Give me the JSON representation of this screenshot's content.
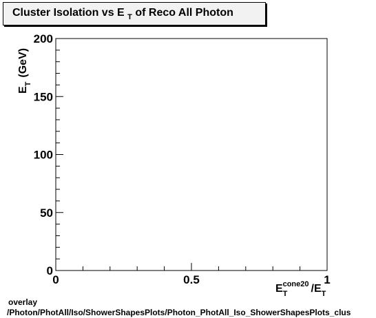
{
  "title": {
    "prefix": "Cluster Isolation vs E",
    "sub": "T",
    "suffix": "of Reco All Photon"
  },
  "chart_data": {
    "type": "scatter",
    "title": "Cluster Isolation vs E_T of Reco All Photon",
    "xlabel": "E_T^cone20/E_T",
    "ylabel": "E_T (GeV)",
    "xlim": [
      0,
      1
    ],
    "ylim": [
      0,
      200
    ],
    "x_tick_labels": [
      "0",
      "0.5",
      "1"
    ],
    "y_tick_labels": [
      "0",
      "50",
      "100",
      "150",
      "200"
    ],
    "x": [],
    "y": [],
    "grid": false,
    "legend": "none"
  },
  "axis_text": {
    "x_main": "E",
    "x_sub": "T",
    "x_sup": "cone20",
    "x_div": "/E",
    "x_div_sub": "T",
    "y_main": "E",
    "y_sub": "T",
    "y_unit": "(GeV)"
  },
  "footer": {
    "line1": "overlay",
    "line2": "/Photon/PhotAll/Iso/ShowerShapesPlots/Photon_PhotAll_Iso_ShowerShapesPlots_clus"
  }
}
